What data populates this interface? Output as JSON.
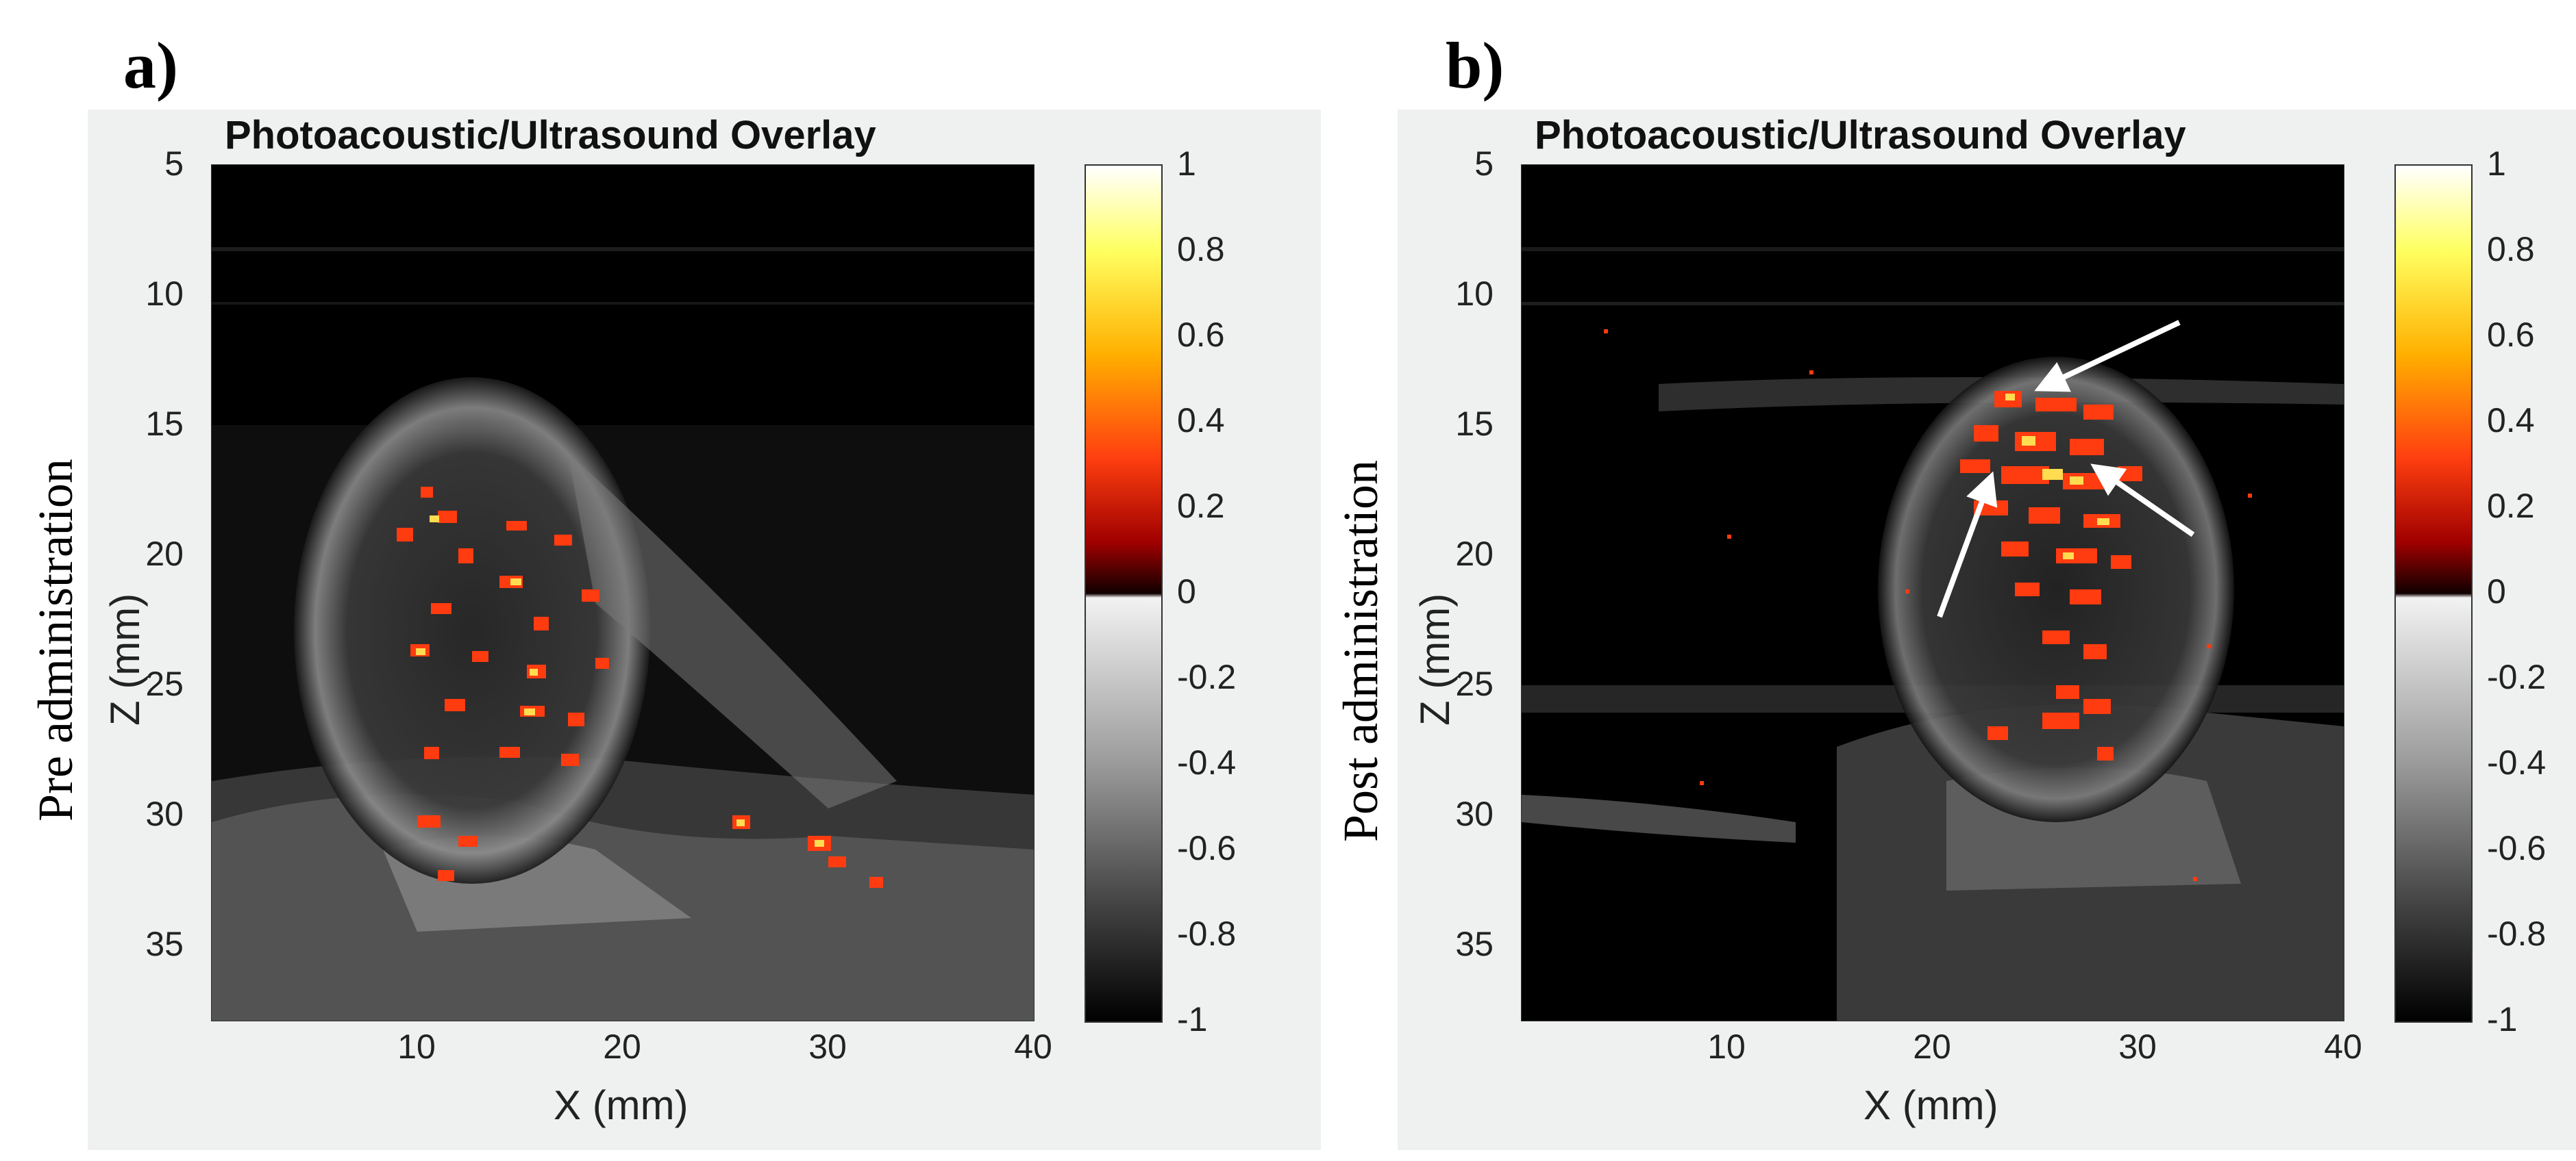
{
  "panels": [
    {
      "letter": "a)",
      "side_label": "Pre administration",
      "title": "Photoacoustic/Ultrasound Overlay",
      "xlabel": "X (mm)",
      "ylabel": "Z (mm)",
      "xticks": [
        "10",
        "20",
        "30",
        "40"
      ],
      "yticks": [
        "5",
        "10",
        "15",
        "20",
        "25",
        "30",
        "35"
      ],
      "cbticks": [
        "1",
        "0.8",
        "0.6",
        "0.4",
        "0.2",
        "0",
        "-0.2",
        "-0.4",
        "-0.6",
        "-0.8",
        "-1"
      ]
    },
    {
      "letter": "b)",
      "side_label": "Post administration",
      "title": "Photoacoustic/Ultrasound Overlay",
      "xlabel": "X (mm)",
      "ylabel": "Z (mm)",
      "xticks": [
        "10",
        "20",
        "30",
        "40"
      ],
      "yticks": [
        "5",
        "10",
        "15",
        "20",
        "25",
        "30",
        "35"
      ],
      "cbticks": [
        "1",
        "0.8",
        "0.6",
        "0.4",
        "0.2",
        "0",
        "-0.2",
        "-0.4",
        "-0.6",
        "-0.8",
        "-1"
      ]
    }
  ],
  "colors": {
    "background": "#eef1ef",
    "photoacoustic_hot": "#ff3b10",
    "photoacoustic_peak": "#ffe060",
    "ultrasound_tissue": "#8a8a8a"
  }
}
